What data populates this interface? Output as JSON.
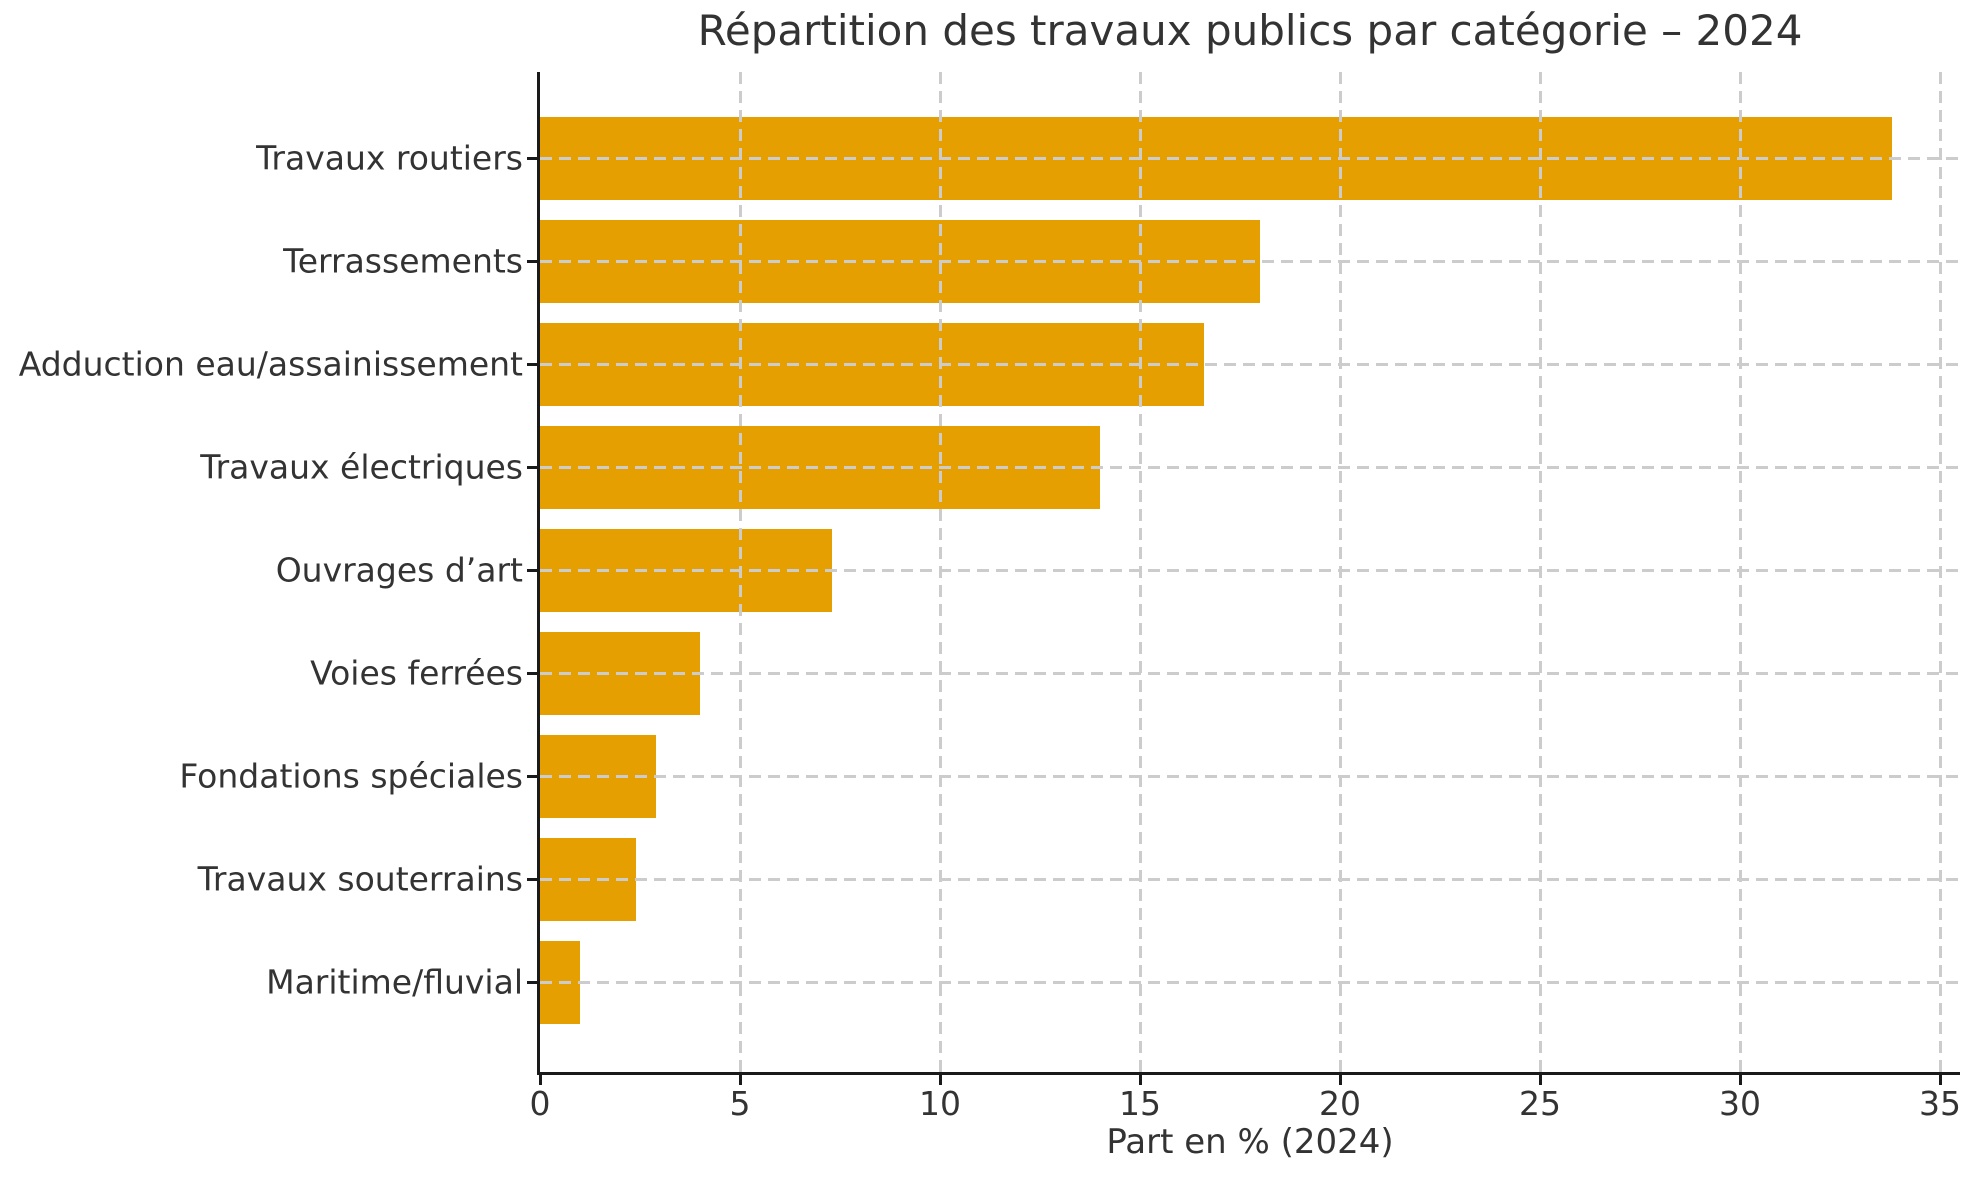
{
  "chart_data": {
    "type": "bar",
    "orientation": "horizontal",
    "title": "Répartition des travaux publics par catégorie – 2024",
    "xlabel": "Part en % (2024)",
    "ylabel": "",
    "categories": [
      "Travaux routiers",
      "Terrassements",
      "Adduction eau/assainissement",
      "Travaux électriques",
      "Ouvrages d’art",
      "Voies ferrées",
      "Fondations spéciales",
      "Travaux souterrains",
      "Maritime/fluvial"
    ],
    "values": [
      33.8,
      18.0,
      16.6,
      14.0,
      7.3,
      4.0,
      2.9,
      2.4,
      1.0
    ],
    "xlim": [
      0,
      35.5
    ],
    "xticks": [
      0,
      5,
      10,
      15,
      20,
      25,
      30,
      35
    ],
    "grid": true,
    "grid_style": "dashed",
    "grid_above_bars": true,
    "legend": "none",
    "bar_color": "#E69F00",
    "grid_color": "#CCCCCC",
    "spine_color": "#1A1A1A",
    "text_color": "#333333",
    "background_color": "#FFFFFF"
  }
}
